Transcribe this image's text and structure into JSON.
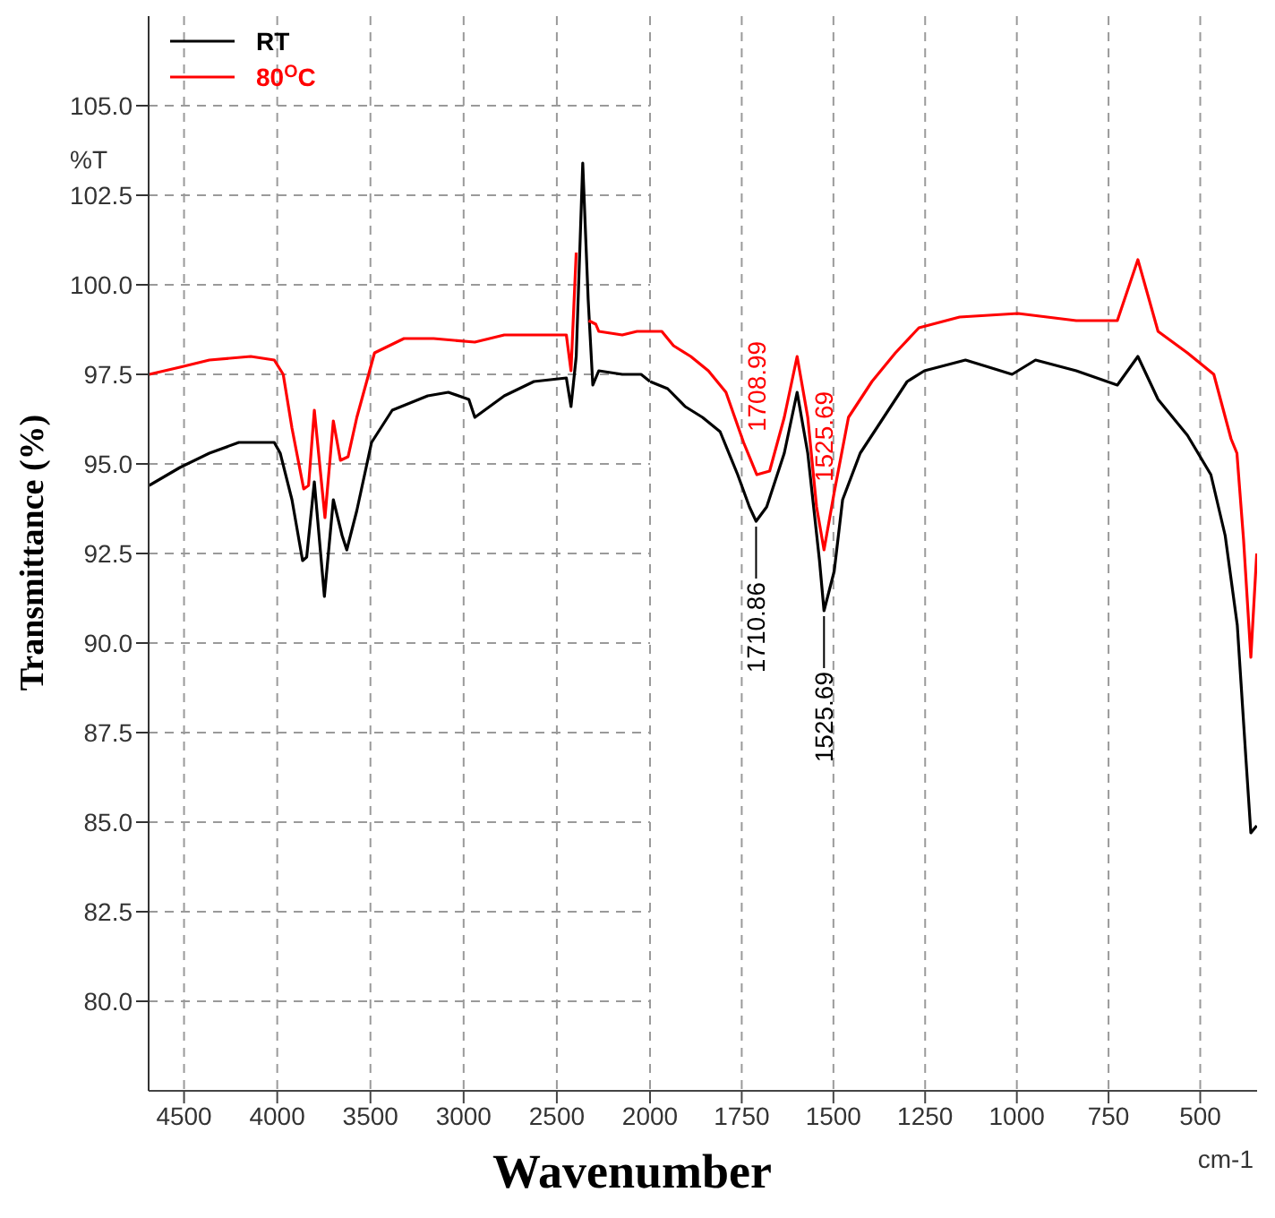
{
  "chart_data": [
    {
      "type": "line",
      "ylabel": "Transmittance (%)",
      "xlim": [
        4690,
        2000
      ],
      "xticks": [
        4500,
        4000,
        3500,
        3000,
        2500,
        2000
      ],
      "ylim": [
        77.5,
        107.5
      ],
      "yticks": [
        {
          "value": 80,
          "label": "80.0"
        },
        82.5,
        {
          "value": 85,
          "label": "85.0"
        },
        87.5,
        {
          "value": 90,
          "label": "90.0"
        },
        92.5,
        {
          "value": 95,
          "label": "95.0"
        },
        97.5,
        {
          "value": 100,
          "label": "100.0"
        },
        102.5,
        {
          "value": 105,
          "label": "105.0"
        }
      ],
      "grid": true,
      "legend": "top left",
      "marker": "none",
      "line_style": "solid",
      "annotations": [
        "%T"
      ],
      "series": [
        {
          "name": "RT",
          "color": "#000000",
          "x": [
            4687,
            4522,
            4364,
            4206,
            4016,
            3984,
            3921,
            3864,
            3842,
            3801,
            3747,
            3699,
            3652,
            3627,
            3573,
            3494,
            3383,
            3193,
            3082,
            2972,
            2940,
            2782,
            2623,
            2449,
            2424,
            2396,
            2361,
            2332,
            2307,
            2275,
            2149,
            2048,
            2000
          ],
          "values": [
            94.4,
            94.9,
            95.3,
            95.6,
            95.6,
            95.3,
            94.0,
            92.3,
            92.4,
            94.5,
            91.3,
            94.0,
            93.0,
            92.6,
            93.7,
            95.6,
            96.5,
            96.9,
            97.0,
            96.8,
            96.3,
            96.9,
            97.3,
            97.4,
            96.6,
            98.0,
            103.4,
            99.6,
            97.2,
            97.6,
            97.5,
            97.5,
            97.3
          ]
        },
        {
          "name": "80$^{O}$C",
          "color": "#ff0000",
          "x": [
            4687,
            4522,
            4364,
            4142,
            4016,
            3968,
            3921,
            3858,
            3832,
            3801,
            3744,
            3699,
            3661,
            3620,
            3573,
            3478,
            3320,
            3161,
            2940,
            2782,
            2449,
            2424,
            2396,
            2378,
            2345,
            2329,
            2291,
            2275,
            2149,
            2070,
            2048,
            2000
          ],
          "values": [
            97.5,
            97.7,
            97.9,
            98.0,
            97.9,
            97.5,
            96.0,
            94.3,
            94.4,
            96.5,
            93.5,
            96.2,
            95.1,
            95.2,
            96.3,
            98.1,
            98.5,
            98.5,
            98.4,
            98.6,
            98.6,
            97.6,
            100.9,
            null,
            null,
            99.0,
            98.9,
            98.7,
            98.6,
            98.7,
            98.7,
            98.7
          ]
        }
      ]
    },
    {
      "type": "line",
      "xlabel": "Wavenumber",
      "xlim": [
        2000,
        345
      ],
      "xticks": [
        1750,
        1500,
        1250,
        1000,
        750,
        500
      ],
      "ylim": [
        77.5,
        107.5
      ],
      "yticks": [
        80,
        82.5,
        85,
        87.5,
        90,
        92.5,
        95,
        97.5,
        100,
        102.5,
        105
      ],
      "tick_labels": "x",
      "grid": true,
      "marker": "none",
      "line_style": "solid",
      "annotations": [
        "cm-1",
        {
          "text": "1710.86",
          "x": 1710.86,
          "y": 93.4
        },
        {
          "text": "1525.69",
          "x": 1525.69,
          "y": 90.9
        },
        {
          "text": "1708.99",
          "x": 1708.99,
          "y": 94.7
        },
        {
          "text": "1525.69",
          "x": 1525.69,
          "y": 92.6
        }
      ],
      "series": [
        {
          "color": "#000000",
          "x": [
            2000,
            1952,
            1904,
            1857,
            1809,
            1761,
            1729,
            1710.86,
            1682,
            1634,
            1599,
            1570,
            1538,
            1525.69,
            1498,
            1475,
            1427,
            1363,
            1299,
            1252,
            1140,
            1076,
            1013,
            949,
            838,
            726,
            670,
            615,
            535,
            471,
            432,
            399,
            375,
            362,
            346
          ],
          "values": [
            97.3,
            97.1,
            96.6,
            96.3,
            95.9,
            94.7,
            93.8,
            93.4,
            93.8,
            95.3,
            97.0,
            95.3,
            92.3,
            90.9,
            92.0,
            94.0,
            95.3,
            96.3,
            97.3,
            97.6,
            97.9,
            97.7,
            97.5,
            97.9,
            97.6,
            97.2,
            98.0,
            96.8,
            95.8,
            94.7,
            93.0,
            90.5,
            86.7,
            84.7,
            84.9
          ]
        },
        {
          "color": "#ff0000",
          "x": [
            2000,
            1968,
            1936,
            1889,
            1841,
            1793,
            1745,
            1708.99,
            1674,
            1634,
            1599,
            1570,
            1546,
            1525.69,
            1498,
            1459,
            1395,
            1331,
            1267,
            1156,
            997,
            838,
            726,
            670,
            615,
            535,
            463,
            416,
            400,
            382,
            362,
            346
          ],
          "values": [
            98.7,
            98.7,
            98.3,
            98.0,
            97.6,
            97.0,
            95.6,
            94.7,
            94.8,
            96.3,
            98.0,
            96.3,
            93.8,
            92.6,
            94.2,
            96.3,
            97.3,
            98.1,
            98.8,
            99.1,
            99.2,
            99.0,
            99.0,
            100.7,
            98.7,
            98.1,
            97.5,
            95.7,
            95.3,
            92.9,
            89.6,
            92.5
          ]
        }
      ]
    }
  ]
}
